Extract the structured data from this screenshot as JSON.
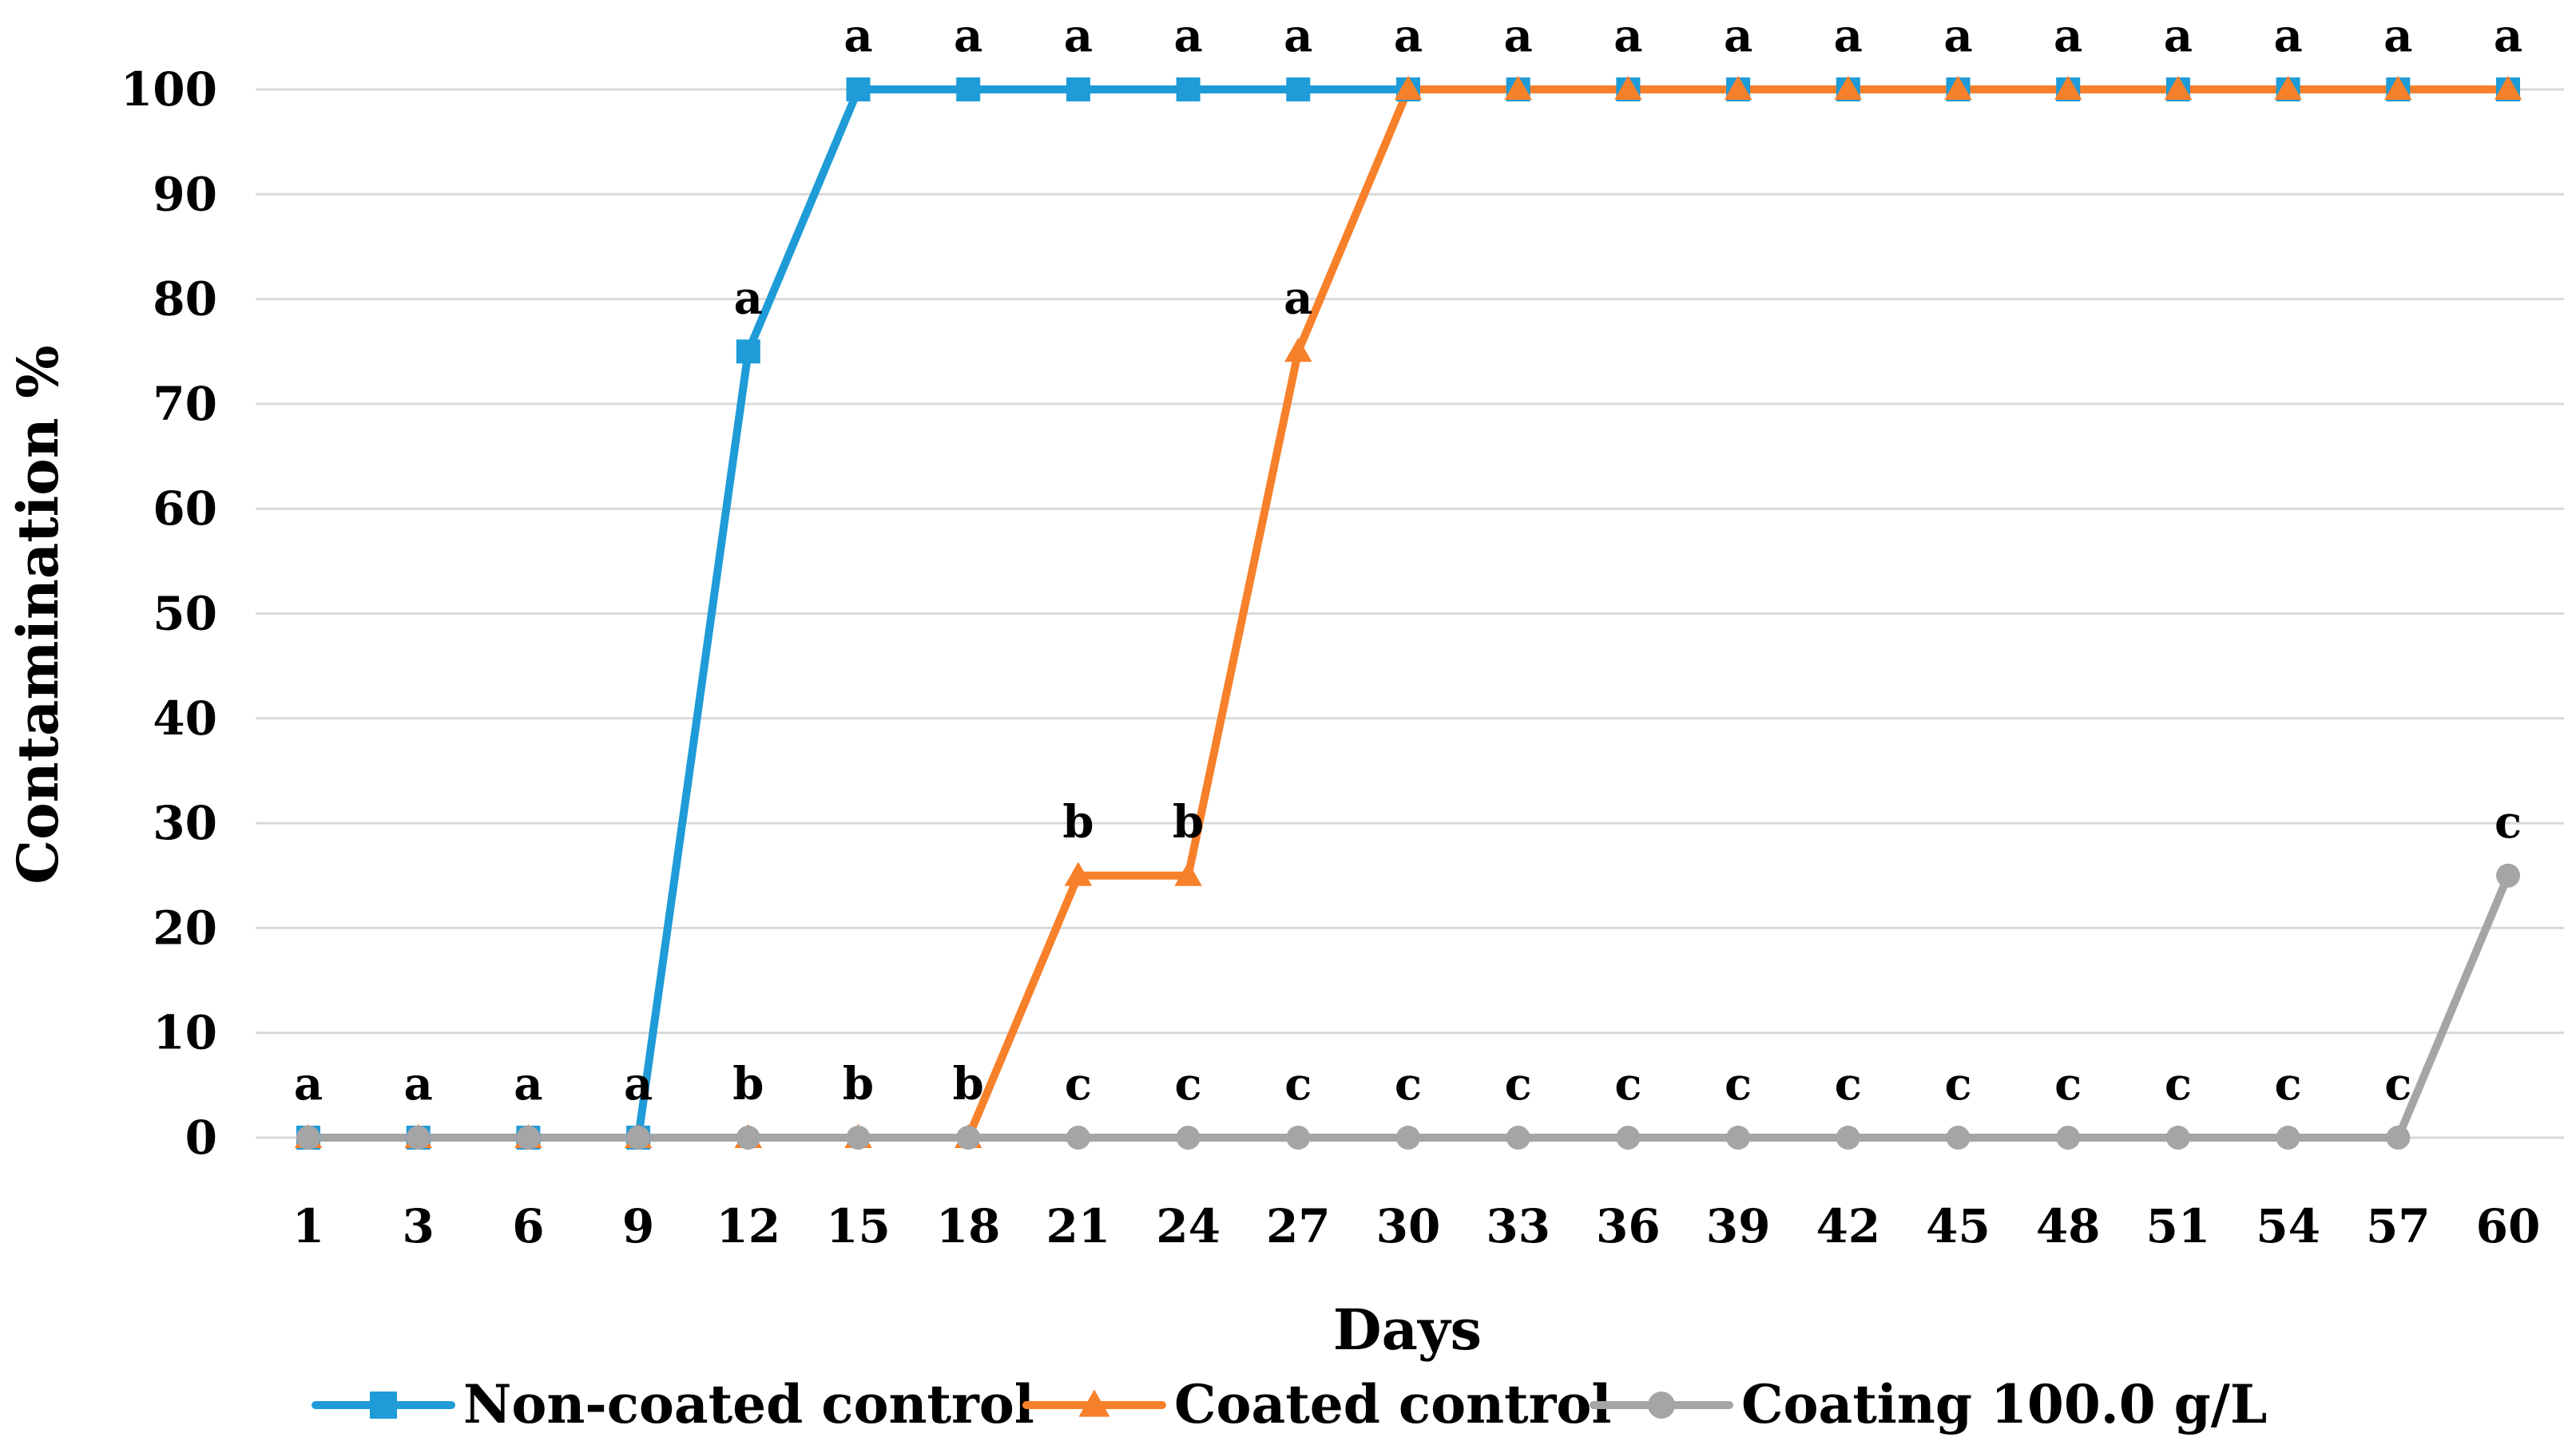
{
  "chart_data": {
    "type": "line",
    "title": "",
    "xlabel": "Days",
    "ylabel": "Contamination %",
    "ylim": [
      0,
      100
    ],
    "yticks": [
      0,
      10,
      20,
      30,
      40,
      50,
      60,
      70,
      80,
      90,
      100
    ],
    "grid": true,
    "legend_position": "bottom",
    "categories": [
      "1",
      "3",
      "6",
      "9",
      "12",
      "15",
      "18",
      "21",
      "24",
      "27",
      "30",
      "33",
      "36",
      "39",
      "42",
      "45",
      "48",
      "51",
      "54",
      "57",
      "60"
    ],
    "series": [
      {
        "name": "Non-coated control",
        "marker": "square",
        "color": "#1f9bd7",
        "values": [
          0,
          0,
          0,
          0,
          75,
          100,
          100,
          100,
          100,
          100,
          100,
          100,
          100,
          100,
          100,
          100,
          100,
          100,
          100,
          100,
          100
        ],
        "letters": [
          "a",
          "a",
          "a",
          "a",
          "a",
          "a",
          "a",
          "a",
          "a",
          "a",
          "a",
          "a",
          "a",
          "a",
          "a",
          "a",
          "a",
          "a",
          "a",
          "a",
          "a"
        ]
      },
      {
        "name": "Coated control",
        "marker": "triangle",
        "color": "#f7802a",
        "values": [
          0,
          0,
          0,
          0,
          0,
          0,
          0,
          25,
          25,
          75,
          100,
          100,
          100,
          100,
          100,
          100,
          100,
          100,
          100,
          100,
          100
        ],
        "letters": [
          "",
          "",
          "",
          "",
          "b",
          "b",
          "b",
          "b",
          "b",
          "a",
          "",
          "",
          "",
          "",
          "",
          "",
          "",
          "",
          "",
          "",
          ""
        ]
      },
      {
        "name": "Coating 100.0  g/L",
        "marker": "circle",
        "color": "#a5a5a5",
        "values": [
          0,
          0,
          0,
          0,
          0,
          0,
          0,
          0,
          0,
          0,
          0,
          0,
          0,
          0,
          0,
          0,
          0,
          0,
          0,
          0,
          25
        ],
        "letters": [
          "",
          "",
          "",
          "",
          "",
          "",
          "",
          "c",
          "c",
          "c",
          "c",
          "c",
          "c",
          "c",
          "c",
          "c",
          "c",
          "c",
          "c",
          "c",
          "c"
        ]
      }
    ]
  }
}
